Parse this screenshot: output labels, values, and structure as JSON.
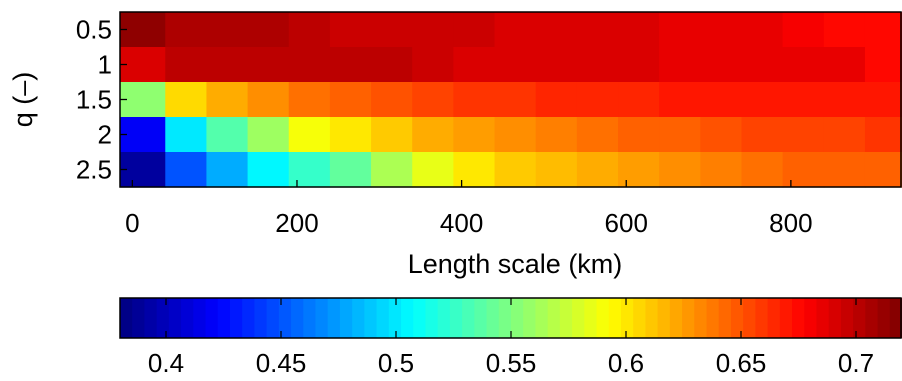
{
  "chart_data": [
    {
      "type": "heatmap",
      "title": "",
      "xlabel": "Length scale (km)",
      "ylabel": "q (–)",
      "xlim": [
        -15,
        935
      ],
      "x_ticks": [
        0,
        200,
        400,
        600,
        800
      ],
      "x_tick_labels": [
        "0",
        "200",
        "400",
        "600",
        "800"
      ],
      "y_ticks": [
        0.5,
        1,
        1.5,
        2,
        2.5
      ],
      "y_tick_labels": [
        "0.5",
        "1",
        "1.5",
        "2",
        "2.5"
      ],
      "x_edges": [
        -15,
        40,
        90,
        140,
        190,
        240,
        290,
        340,
        390,
        440,
        490,
        540,
        590,
        640,
        690,
        740,
        790,
        840,
        890,
        935
      ],
      "y": [
        0.5,
        1,
        1.5,
        2,
        2.5
      ],
      "colormap": "jet",
      "clim": [
        0.38,
        0.72
      ],
      "z": [
        [
          0.715,
          0.705,
          0.705,
          0.705,
          0.7,
          0.695,
          0.695,
          0.695,
          0.695,
          0.69,
          0.69,
          0.69,
          0.69,
          0.685,
          0.685,
          0.685,
          0.68,
          0.675,
          0.675
        ],
        [
          0.69,
          0.7,
          0.7,
          0.7,
          0.7,
          0.7,
          0.7,
          0.695,
          0.69,
          0.69,
          0.69,
          0.69,
          0.69,
          0.685,
          0.685,
          0.685,
          0.685,
          0.685,
          0.675
        ],
        [
          0.555,
          0.605,
          0.62,
          0.63,
          0.64,
          0.645,
          0.65,
          0.655,
          0.66,
          0.66,
          0.665,
          0.665,
          0.665,
          0.67,
          0.67,
          0.67,
          0.67,
          0.67,
          0.67
        ],
        [
          0.42,
          0.5,
          0.535,
          0.56,
          0.59,
          0.6,
          0.61,
          0.62,
          0.625,
          0.63,
          0.635,
          0.64,
          0.645,
          0.645,
          0.65,
          0.655,
          0.655,
          0.655,
          0.66
        ],
        [
          0.39,
          0.45,
          0.48,
          0.505,
          0.525,
          0.54,
          0.565,
          0.585,
          0.6,
          0.61,
          0.615,
          0.62,
          0.625,
          0.63,
          0.635,
          0.64,
          0.645,
          0.645,
          0.645
        ]
      ]
    },
    {
      "type": "colorbar",
      "colormap": "jet",
      "range": [
        0.38,
        0.72
      ],
      "ticks": [
        0.4,
        0.45,
        0.5,
        0.55,
        0.6,
        0.65,
        0.7
      ],
      "tick_labels": [
        "0.4",
        "0.45",
        "0.5",
        "0.55",
        "0.6",
        "0.65",
        "0.7"
      ]
    }
  ]
}
